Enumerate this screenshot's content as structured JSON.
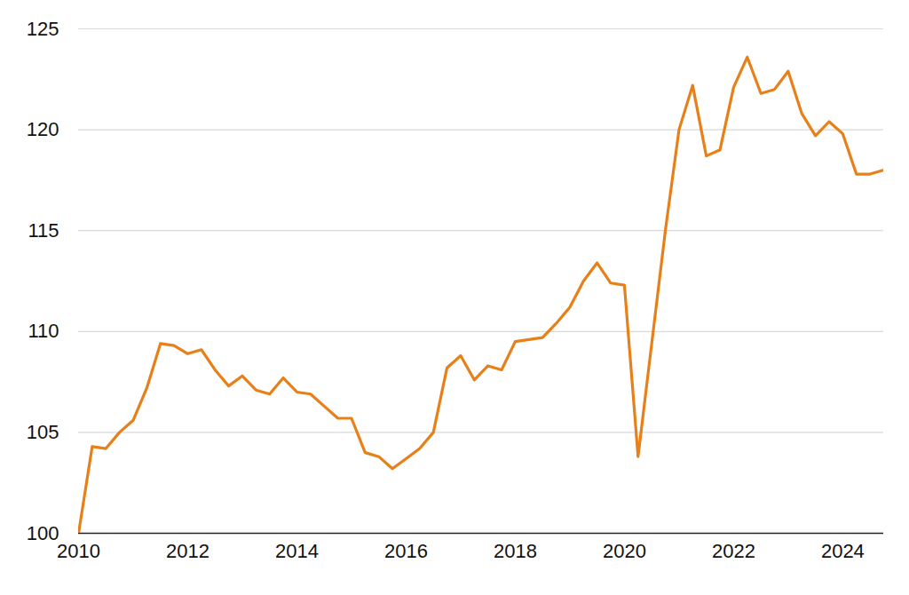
{
  "chart_data": {
    "type": "line",
    "x": [
      2010,
      2010.25,
      2010.5,
      2010.75,
      2011,
      2011.25,
      2011.5,
      2011.75,
      2012,
      2012.25,
      2012.5,
      2012.75,
      2013,
      2013.25,
      2013.5,
      2013.75,
      2014,
      2014.25,
      2014.5,
      2014.75,
      2015,
      2015.25,
      2015.5,
      2015.75,
      2016,
      2016.25,
      2016.5,
      2016.75,
      2017,
      2017.25,
      2017.5,
      2017.75,
      2018,
      2018.25,
      2018.5,
      2018.75,
      2019,
      2019.25,
      2019.5,
      2019.75,
      2020,
      2020.25,
      2020.5,
      2020.75,
      2021,
      2021.25,
      2021.5,
      2021.75,
      2022,
      2022.25,
      2022.5,
      2022.75,
      2023,
      2023.25,
      2023.5,
      2023.75,
      2024,
      2024.25,
      2024.5,
      2024.75
    ],
    "values": [
      100,
      104.3,
      104.2,
      105.0,
      105.6,
      107.2,
      109.4,
      109.3,
      108.9,
      109.1,
      108.1,
      107.3,
      107.8,
      107.1,
      106.9,
      107.7,
      107.0,
      106.9,
      106.3,
      105.7,
      105.7,
      104.0,
      103.8,
      103.2,
      103.7,
      104.2,
      105.0,
      108.2,
      108.8,
      107.6,
      108.3,
      108.1,
      109.5,
      109.6,
      109.7,
      110.4,
      111.2,
      112.5,
      113.4,
      112.4,
      112.3,
      103.8,
      109.4,
      115.0,
      120.0,
      122.2,
      118.7,
      119.0,
      122.1,
      123.6,
      121.8,
      122.0,
      122.9,
      120.8,
      119.7,
      120.4,
      119.8,
      117.8,
      117.8,
      118.0
    ],
    "color": "#e8801a",
    "xlim": [
      2010,
      2024.75
    ],
    "xticks": [
      2010,
      2012,
      2014,
      2016,
      2018,
      2020,
      2022,
      2024
    ],
    "ylim": [
      100,
      125
    ],
    "yticks": [
      100,
      105,
      110,
      115,
      120,
      125
    ],
    "grid": true
  }
}
